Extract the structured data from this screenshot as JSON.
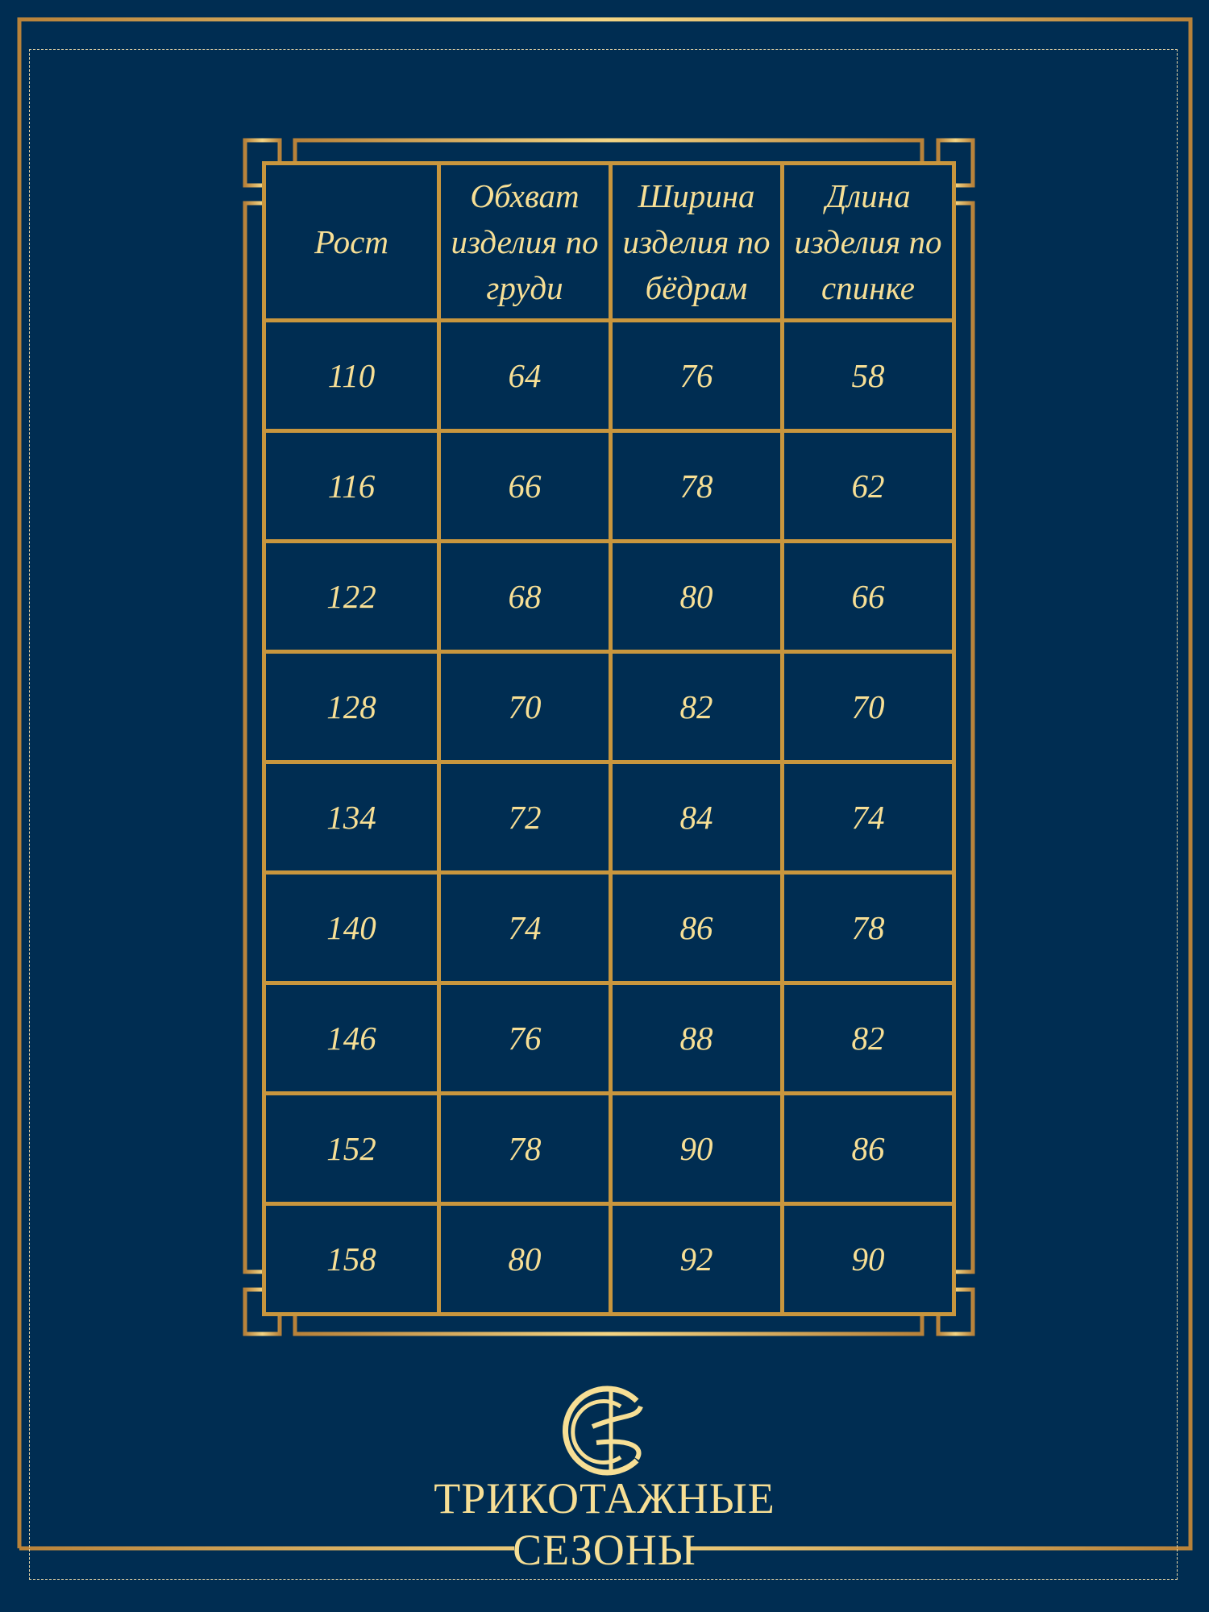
{
  "colors": {
    "background": "#002d52",
    "gold": "#c8963e",
    "text": "#f7df95"
  },
  "table": {
    "headers": [
      "Рост",
      "Обхват изделия по груди",
      "Ширина изделия по бёдрам",
      "Длина изделия по спинке"
    ],
    "rows": [
      [
        "110",
        "64",
        "76",
        "58"
      ],
      [
        "116",
        "66",
        "78",
        "62"
      ],
      [
        "122",
        "68",
        "80",
        "66"
      ],
      [
        "128",
        "70",
        "82",
        "70"
      ],
      [
        "134",
        "72",
        "84",
        "74"
      ],
      [
        "140",
        "74",
        "86",
        "78"
      ],
      [
        "146",
        "76",
        "88",
        "82"
      ],
      [
        "152",
        "78",
        "90",
        "86"
      ],
      [
        "158",
        "80",
        "92",
        "90"
      ]
    ]
  },
  "brand": {
    "line1": "ТРИКОТАЖНЫЕ",
    "line2": "СЕЗОНЫ",
    "icon": "thread-needle-s-logo"
  }
}
